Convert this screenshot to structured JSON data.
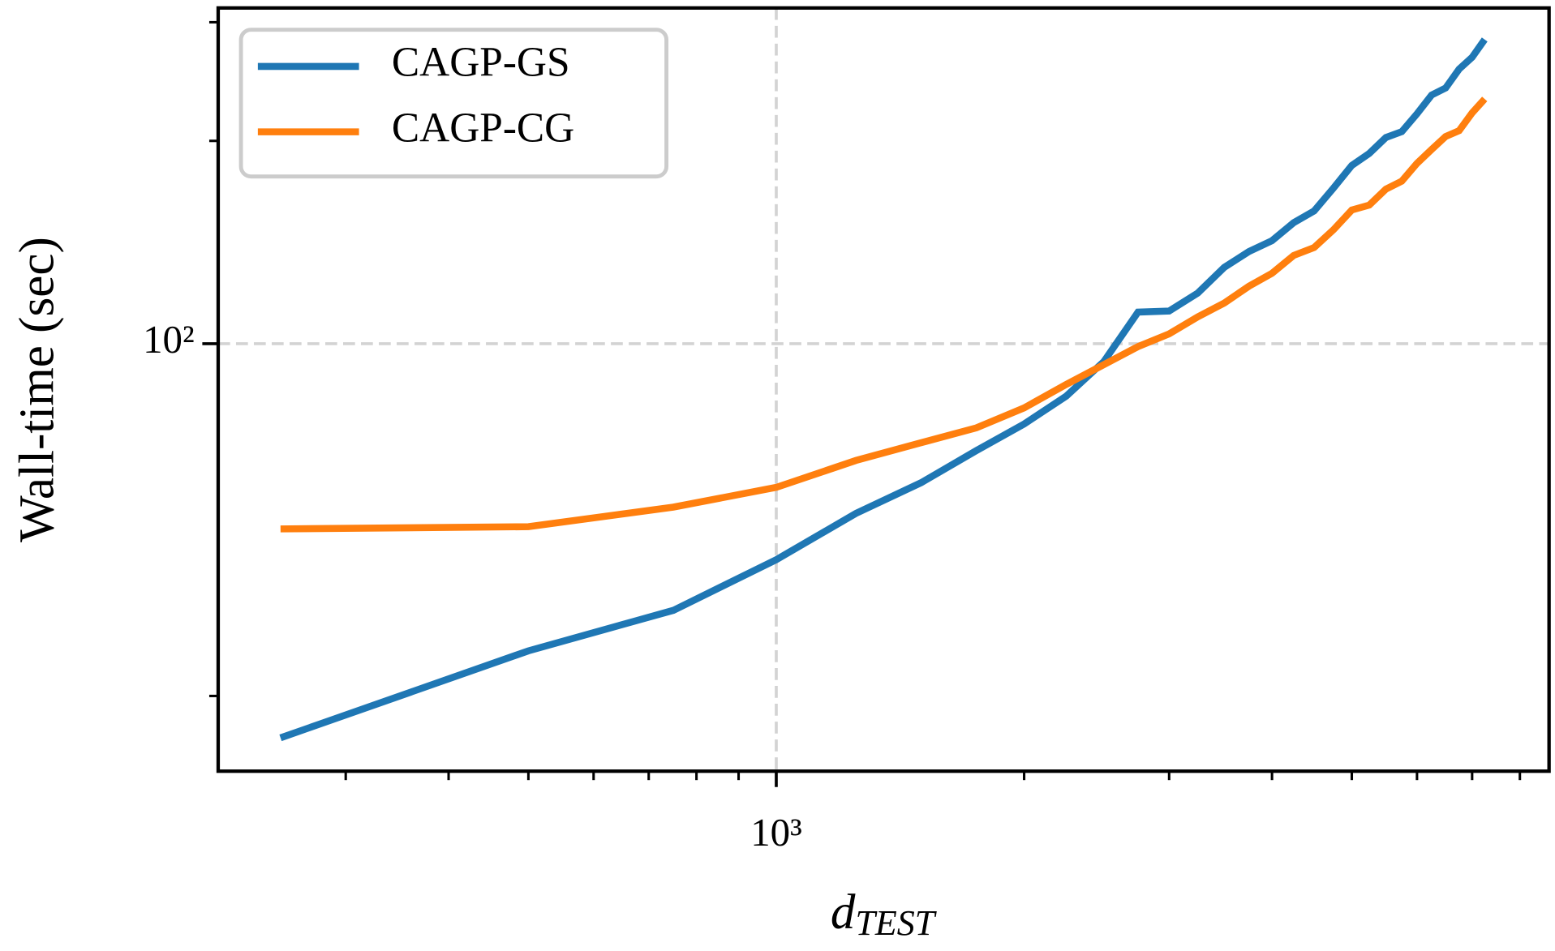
{
  "chart_data": {
    "type": "line",
    "xlabel": {
      "base": "d",
      "subscript": "TEST"
    },
    "ylabel": "Wall-time (sec)",
    "x": [
      250,
      500,
      750,
      1000,
      1250,
      1500,
      1750,
      2000,
      2250,
      2500,
      2750,
      3000,
      3250,
      3500,
      3750,
      4000,
      4250,
      4500,
      4750,
      5000,
      5250,
      5500,
      5750,
      6000,
      6250,
      6500,
      6750,
      7000,
      7250
    ],
    "series": [
      {
        "name": "CAGP-GS",
        "color": "#1f77b4",
        "values": [
          26.0,
          35.0,
          40.2,
          47.8,
          56.0,
          62.2,
          69.4,
          76.0,
          83.6,
          94.1,
          111.4,
          111.8,
          118.9,
          129.8,
          137.0,
          142.2,
          151.2,
          157.4,
          170.2,
          183.9,
          191.6,
          202.3,
          206.4,
          219.4,
          233.9,
          239.6,
          255.6,
          266.1,
          282.8
        ]
      },
      {
        "name": "CAGP-CG",
        "color": "#ff7f0e",
        "values": [
          53.1,
          53.5,
          57.2,
          61.2,
          67.1,
          71.3,
          75.0,
          80.3,
          87.0,
          93.1,
          99.0,
          103.4,
          109.6,
          114.9,
          121.7,
          127.2,
          135.2,
          138.9,
          147.6,
          157.9,
          160.6,
          169.6,
          174.3,
          185.2,
          194.2,
          203.0,
          207.1,
          220.1,
          230.8
        ]
      }
    ],
    "xscale": "log",
    "yscale": "log",
    "xlim": [
      210,
      8680
    ],
    "ylim": [
      23.2,
      315
    ],
    "xticks": [
      {
        "value": 1000,
        "label": "10³"
      }
    ],
    "yticks": [
      {
        "value": 100,
        "label": "10²"
      }
    ],
    "xminorticks": [
      300,
      400,
      500,
      600,
      700,
      800,
      900,
      2000,
      3000,
      4000,
      5000,
      6000,
      7000,
      8000
    ],
    "yminorticks": [
      30,
      200,
      300
    ],
    "grid": true,
    "legend": "upper left"
  }
}
